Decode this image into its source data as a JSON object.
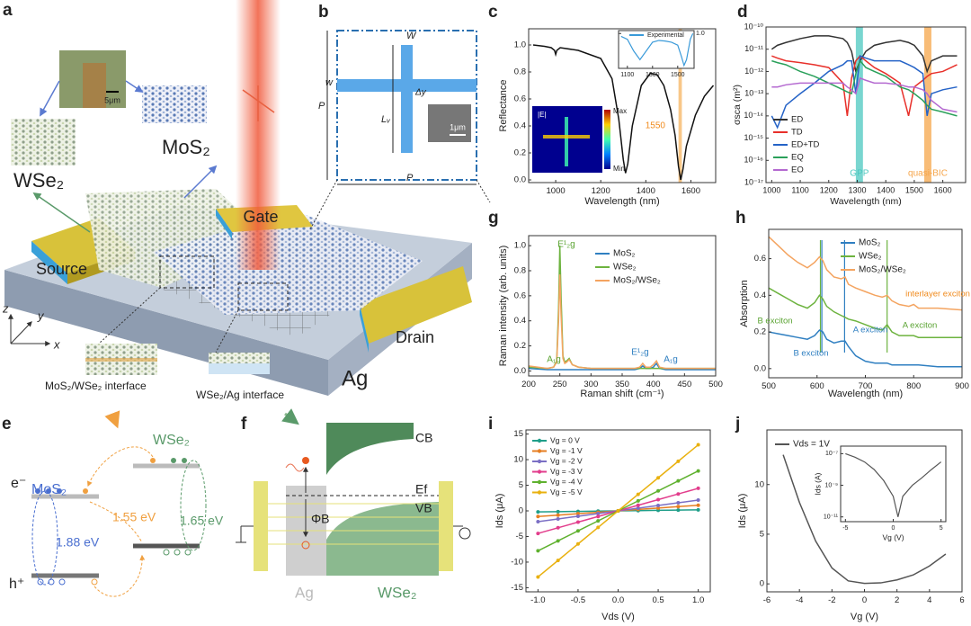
{
  "panel_a": {
    "label": "a",
    "micrograph_scale": "5μm",
    "mos2": "MoS₂",
    "wse2": "WSe₂",
    "gate": "Gate",
    "source": "Source",
    "drain": "Drain",
    "substrate": "Ag",
    "axes": [
      "z",
      "y",
      "x"
    ],
    "interfaces": [
      "MoS₂/WSe₂ interface",
      "WSe₂/Ag interface"
    ]
  },
  "panel_b": {
    "label": "b",
    "width_top": "W",
    "width_side": "w",
    "offset": "Δy",
    "length": "Lᵥ",
    "period_side": "P",
    "period_bottom": "P",
    "sem_scale": "1μm"
  },
  "panel_e": {
    "label": "e",
    "mos2": "MoS₂",
    "wse2": "WSe₂",
    "electron": "e⁻",
    "hole": "h⁺",
    "gap_interlayer": "1.55 eV",
    "gap_wse2": "1.65 eV",
    "gap_mos2": "1.88 eV"
  },
  "panel_f": {
    "label": "f",
    "cb": "CB",
    "ef": "Ef",
    "vb": "VB",
    "barrier": "ΦB",
    "metal": "Ag",
    "semiconductor": "WSe₂"
  },
  "chart_data": [
    {
      "type": "line",
      "panel_label": "c",
      "x_label": "Wavelength (nm)",
      "y_label": "Reflectance",
      "x": [
        900,
        950,
        980,
        995,
        1000,
        1005,
        1020,
        1100,
        1200,
        1250,
        1280,
        1300,
        1310,
        1320,
        1340,
        1380,
        1420,
        1450,
        1480,
        1510,
        1530,
        1545,
        1555,
        1565,
        1580,
        1620,
        1660,
        1700
      ],
      "values": [
        1.0,
        0.99,
        0.98,
        0.96,
        0.93,
        0.96,
        0.98,
        0.96,
        0.9,
        0.75,
        0.45,
        0.15,
        0.05,
        0.12,
        0.4,
        0.7,
        0.79,
        0.78,
        0.7,
        0.52,
        0.33,
        0.1,
        0.0,
        0.08,
        0.25,
        0.48,
        0.62,
        0.7
      ],
      "color": "#111111",
      "xlim": [
        880,
        1710
      ],
      "ylim": [
        -0.02,
        1.12
      ],
      "xticks": [
        1000,
        1200,
        1400,
        1600
      ],
      "yticks": [
        {
          "value": 0,
          "label": "0.0"
        },
        {
          "value": 0.2,
          "label": "0.2"
        },
        {
          "value": 0.4,
          "label": "0.4"
        },
        {
          "value": 0.6,
          "label": "0.6"
        },
        {
          "value": 0.8,
          "label": "0.8"
        },
        {
          "value": 1,
          "label": "1.0"
        }
      ],
      "bands": [
        {
          "range": [
            1545,
            1560
          ],
          "color": "#f6b460"
        }
      ],
      "annotations": [
        {
          "text": "1550",
          "color": "#f08a1c"
        }
      ],
      "field_map": {
        "label": "|E|",
        "max": "Max",
        "min": "Min"
      },
      "inset": {
        "type": "line",
        "series": [
          {
            "name": "Experimental",
            "color": "#3a9ad9",
            "values": [
              0.95,
              0.9,
              0.7,
              0.55,
              0.7,
              0.85,
              0.88,
              0.87,
              0.85,
              0.8,
              0.6,
              0.45,
              0.55,
              0.9,
              1.0
            ]
          }
        ],
        "x": [
          1050,
          1100,
          1150,
          1200,
          1250,
          1300,
          1350,
          1400,
          1450,
          1500,
          1530,
          1550,
          1570,
          1600,
          1620
        ],
        "xlim": [
          1030,
          1630
        ],
        "ylim": [
          0.4,
          1.05
        ],
        "xticks": [
          1100,
          1300,
          1500
        ],
        "yticks": [
          {
            "value": 1,
            "label": "1.0"
          }
        ]
      }
    },
    {
      "type": "line",
      "panel_label": "d",
      "x_label": "Wavelength (nm)",
      "y_label": "σsca (m²)",
      "log_y": true,
      "x": [
        1000,
        1020,
        1050,
        1100,
        1150,
        1200,
        1250,
        1265,
        1280,
        1295,
        1310,
        1330,
        1360,
        1400,
        1450,
        1480,
        1500,
        1530,
        1545,
        1560,
        1600,
        1650
      ],
      "series": [
        {
          "name": "ED",
          "color": "#333333",
          "values": [
            1e-11,
            1.5e-11,
            2e-11,
            3e-11,
            4e-11,
            4e-11,
            3e-11,
            2e-11,
            8e-12,
            1e-12,
            3e-12,
            8e-12,
            1.5e-11,
            2e-11,
            2.5e-11,
            2e-11,
            1.5e-11,
            5e-12,
            1e-12,
            3e-12,
            5e-12,
            5e-12
          ]
        },
        {
          "name": "TD",
          "color": "#e8302a",
          "values": [
            5e-12,
            4e-12,
            3e-12,
            2.5e-12,
            2e-12,
            1.5e-12,
            3e-13,
            1e-14,
            5e-13,
            3e-12,
            5e-12,
            3e-12,
            1.5e-12,
            8e-13,
            3e-13,
            1e-14,
            2e-13,
            4e-13,
            6e-13,
            8e-13,
            1e-12,
            2e-12
          ]
        },
        {
          "name": "ED+TD",
          "color": "#2563c7",
          "values": [
            1e-14,
            3e-15,
            3e-14,
            1e-13,
            3e-13,
            1e-12,
            2e-12,
            3e-12,
            3e-12,
            1e-13,
            5e-12,
            4e-12,
            3e-12,
            3e-12,
            3e-12,
            2e-12,
            1.5e-12,
            8e-13,
            1e-14,
            1e-13,
            1.5e-13,
            2e-13
          ]
        },
        {
          "name": "EQ",
          "color": "#2aa05a",
          "values": [
            3e-12,
            2.5e-12,
            2e-12,
            1e-12,
            6e-13,
            3e-13,
            1.5e-13,
            1.2e-13,
            1e-13,
            8e-13,
            3e-12,
            1.5e-12,
            1e-12,
            6e-13,
            2e-13,
            1.5e-13,
            1e-13,
            5e-14,
            3e-14,
            2e-14,
            1.5e-14,
            1e-14
          ]
        },
        {
          "name": "EO",
          "color": "#b469d0",
          "values": [
            2e-13,
            2e-13,
            2.5e-13,
            3e-13,
            3e-13,
            3e-13,
            3e-13,
            2e-13,
            1.5e-13,
            1e-13,
            5e-13,
            4e-13,
            3e-13,
            3e-13,
            2.5e-13,
            2e-13,
            2e-13,
            1.5e-13,
            1e-13,
            5e-14,
            2e-14,
            1.5e-14
          ]
        }
      ],
      "xlim": [
        980,
        1680
      ],
      "ylim": [
        1e-17,
        1e-10
      ],
      "xticks": [
        1000,
        1100,
        1200,
        1300,
        1400,
        1500,
        1600
      ],
      "yticks": [
        {
          "value": 1e-17,
          "label": "10⁻¹⁷"
        },
        {
          "value": 1e-16,
          "label": "10⁻¹⁶"
        },
        {
          "value": 1e-15,
          "label": "10⁻¹⁵"
        },
        {
          "value": 1e-14,
          "label": "10⁻¹⁴"
        },
        {
          "value": 1e-13,
          "label": "10⁻¹³"
        },
        {
          "value": 1e-12,
          "label": "10⁻¹²"
        },
        {
          "value": 1e-11,
          "label": "10⁻¹¹"
        },
        {
          "value": 1e-10,
          "label": "10⁻¹⁰"
        }
      ],
      "bands": [
        {
          "label": "GPP",
          "range": [
            1295,
            1320
          ],
          "color": "#4cc8c0"
        },
        {
          "label": "quasi-BIC",
          "range": [
            1535,
            1560
          ],
          "color": "#f6a54a"
        }
      ]
    },
    {
      "type": "line",
      "panel_label": "g",
      "x_label": "Raman shift (cm⁻¹)",
      "y_label": "Raman intensity (arb. units)",
      "x": [
        200,
        230,
        240,
        245,
        248,
        250,
        252,
        255,
        258,
        261,
        265,
        270,
        280,
        300,
        350,
        370,
        378,
        383,
        388,
        395,
        400,
        405,
        410,
        420,
        450,
        500
      ],
      "series": [
        {
          "name": "MoS₂",
          "color": "#2f7fc1",
          "values": [
            0.02,
            0.01,
            0.01,
            0.01,
            0.01,
            0.01,
            0.01,
            0.01,
            0.01,
            0.01,
            0.01,
            0.01,
            0.01,
            0.01,
            0.01,
            0.01,
            0.02,
            0.04,
            0.02,
            0.02,
            0.03,
            0.06,
            0.02,
            0.01,
            0.01,
            0.01
          ]
        },
        {
          "name": "WSe₂",
          "color": "#6db33f",
          "values": [
            0.03,
            0.02,
            0.03,
            0.08,
            0.5,
            1.0,
            0.6,
            0.12,
            0.07,
            0.08,
            0.1,
            0.05,
            0.03,
            0.02,
            0.02,
            0.02,
            0.02,
            0.02,
            0.02,
            0.02,
            0.02,
            0.02,
            0.02,
            0.02,
            0.02,
            0.02
          ]
        },
        {
          "name": "MoS₂/WSe₂",
          "color": "#f4a460",
          "values": [
            0.04,
            0.02,
            0.03,
            0.07,
            0.4,
            0.77,
            0.45,
            0.1,
            0.06,
            0.07,
            0.09,
            0.05,
            0.03,
            0.02,
            0.02,
            0.02,
            0.03,
            0.06,
            0.03,
            0.03,
            0.05,
            0.08,
            0.03,
            0.02,
            0.02,
            0.02
          ]
        }
      ],
      "xlim": [
        200,
        500
      ],
      "ylim": [
        -0.04,
        1.08
      ],
      "xticks": [
        200,
        250,
        300,
        350,
        400,
        450,
        500
      ],
      "yticks": [
        {
          "value": 0,
          "label": "0.0"
        },
        {
          "value": 0.2,
          "label": "0.2"
        },
        {
          "value": 0.4,
          "label": "0.4"
        },
        {
          "value": 0.6,
          "label": "0.6"
        },
        {
          "value": 0.8,
          "label": "0.8"
        },
        {
          "value": 1,
          "label": "1.0"
        }
      ],
      "annotations": [
        {
          "text": "E¹₂g",
          "color": "#5aa332"
        },
        {
          "text": "A₁g",
          "color": "#5aa332"
        },
        {
          "text": "E¹₂g",
          "color": "#2f7fc1"
        },
        {
          "text": "A₁g",
          "color": "#2f7fc1"
        }
      ]
    },
    {
      "type": "line",
      "panel_label": "h",
      "x_label": "Wavelength (nm)",
      "y_label": "Absorption",
      "x": [
        500,
        520,
        540,
        560,
        580,
        595,
        605,
        612,
        620,
        635,
        650,
        658,
        665,
        680,
        700,
        720,
        735,
        745,
        755,
        770,
        790,
        800,
        810,
        850,
        900
      ],
      "series": [
        {
          "name": "MoS₂",
          "color": "#2f7fc1",
          "values": [
            0.2,
            0.19,
            0.18,
            0.17,
            0.16,
            0.18,
            0.21,
            0.2,
            0.16,
            0.14,
            0.15,
            0.15,
            0.12,
            0.07,
            0.04,
            0.03,
            0.03,
            0.03,
            0.02,
            0.02,
            0.02,
            0.02,
            0.02,
            0.01,
            0.01
          ]
        },
        {
          "name": "WSe₂",
          "color": "#6db33f",
          "values": [
            0.44,
            0.41,
            0.38,
            0.35,
            0.33,
            0.36,
            0.4,
            0.38,
            0.34,
            0.31,
            0.29,
            0.28,
            0.27,
            0.26,
            0.24,
            0.22,
            0.21,
            0.24,
            0.2,
            0.18,
            0.18,
            0.18,
            0.17,
            0.17,
            0.17
          ]
        },
        {
          "name": "MoS₂/WSe₂",
          "color": "#f4a460",
          "values": [
            0.72,
            0.67,
            0.62,
            0.58,
            0.55,
            0.58,
            0.61,
            0.59,
            0.54,
            0.5,
            0.49,
            0.5,
            0.46,
            0.44,
            0.42,
            0.4,
            0.39,
            0.4,
            0.37,
            0.35,
            0.34,
            0.35,
            0.33,
            0.33,
            0.32
          ]
        }
      ],
      "xlim": [
        500,
        900
      ],
      "ylim": [
        -0.05,
        0.76
      ],
      "xticks": [
        500,
        600,
        700,
        800,
        900
      ],
      "yticks": [
        {
          "value": 0,
          "label": "0.0"
        },
        {
          "value": 0.2,
          "label": "0.2"
        },
        {
          "value": 0.4,
          "label": "0.4"
        },
        {
          "value": 0.6,
          "label": "0.6"
        }
      ],
      "peak_lines": [
        {
          "x": 607,
          "color": "#6db33f"
        },
        {
          "x": 610,
          "color": "#2f7fc1"
        },
        {
          "x": 657,
          "color": "#2f7fc1"
        },
        {
          "x": 745,
          "color": "#6db33f"
        }
      ],
      "annotations": [
        {
          "text": "B exciton",
          "color": "#5aa332"
        },
        {
          "text": "B exciton",
          "color": "#2f7fc1"
        },
        {
          "text": "A exciton",
          "color": "#2f7fc1"
        },
        {
          "text": "A exciton",
          "color": "#5aa332"
        },
        {
          "text": "interlayer exciton",
          "color": "#f08a1c"
        }
      ]
    },
    {
      "type": "line",
      "panel_label": "i",
      "x_label": "Vds (V)",
      "y_label": "Ids (μA)",
      "markers": true,
      "x": [
        -1,
        -0.75,
        -0.5,
        -0.25,
        0,
        0.25,
        0.5,
        0.75,
        1
      ],
      "series": [
        {
          "name": "Vg = 0 V",
          "color": "#1f9e89",
          "values": [
            -0.2,
            -0.15,
            -0.1,
            -0.05,
            0,
            0.05,
            0.1,
            0.15,
            0.2
          ]
        },
        {
          "name": "Vg = -1 V",
          "color": "#e67e22",
          "values": [
            -1.1,
            -0.83,
            -0.55,
            -0.28,
            0,
            0.28,
            0.55,
            0.83,
            1.1
          ]
        },
        {
          "name": "Vg = -2 V",
          "color": "#7b6fc4",
          "values": [
            -2.1,
            -1.58,
            -1.05,
            -0.53,
            0,
            0.53,
            1.05,
            1.58,
            2.1
          ]
        },
        {
          "name": "Vg = -3 V",
          "color": "#e23d8c",
          "values": [
            -4.4,
            -3.3,
            -2.2,
            -1.1,
            0,
            1.1,
            2.2,
            3.3,
            4.4
          ]
        },
        {
          "name": "Vg = -4 V",
          "color": "#5fb12f",
          "values": [
            -7.8,
            -5.85,
            -3.9,
            -1.95,
            0,
            1.95,
            3.9,
            5.85,
            7.8
          ]
        },
        {
          "name": "Vg = -5 V",
          "color": "#e9b10f",
          "values": [
            -12.9,
            -9.68,
            -6.45,
            -3.23,
            0,
            3.23,
            6.45,
            9.68,
            12.9
          ]
        }
      ],
      "xlim": [
        -1.15,
        1.15
      ],
      "ylim": [
        -15.8,
        15.8
      ],
      "xticks": [
        {
          "value": -1,
          "label": "-1.0"
        },
        -0.5,
        {
          "value": 0,
          "label": "0.0"
        },
        0.5,
        {
          "value": 1,
          "label": "1.0"
        }
      ],
      "yticks": [
        -15,
        -10,
        -5,
        0,
        5,
        10,
        15
      ]
    },
    {
      "type": "line",
      "panel_label": "j",
      "x_label": "Vg (V)",
      "y_label": "Ids (μA)",
      "x": [
        -5,
        -4,
        -3,
        -2,
        -1,
        0,
        1,
        2,
        3,
        4,
        5
      ],
      "series": [
        {
          "name": "Vds = 1V",
          "color": "#555555",
          "values": [
            13,
            8.2,
            4.3,
            1.6,
            0.3,
            0.05,
            0.1,
            0.4,
            0.9,
            1.8,
            3
          ]
        }
      ],
      "xlim": [
        -6,
        6
      ],
      "ylim": [
        -0.8,
        15.5
      ],
      "xticks": [
        -6,
        -4,
        -2,
        0,
        2,
        4,
        6
      ],
      "yticks": [
        0,
        5,
        10
      ],
      "inset": {
        "type": "line",
        "x_label": "Vg (V)",
        "y_label": "Ids (A)",
        "log_y": true,
        "x": [
          -5,
          -4,
          -3,
          -2,
          -1,
          0,
          0.5,
          1,
          2,
          3,
          4,
          5
        ],
        "values": [
          1e-07,
          6e-08,
          3e-08,
          1e-08,
          2e-09,
          2e-10,
          1e-11,
          2e-10,
          1e-09,
          3e-09,
          1e-08,
          3e-08
        ],
        "color": "#555555",
        "xlim": [
          -5.5,
          5.5
        ],
        "ylim": [
          5e-12,
          3e-07
        ],
        "xticks": [
          -5,
          0,
          5
        ],
        "yticks": [
          {
            "value": 1e-11,
            "label": "10⁻¹¹"
          },
          {
            "value": 1e-09,
            "label": "10⁻⁹"
          },
          {
            "value": 1e-07,
            "label": "10⁻⁷"
          }
        ]
      }
    }
  ]
}
